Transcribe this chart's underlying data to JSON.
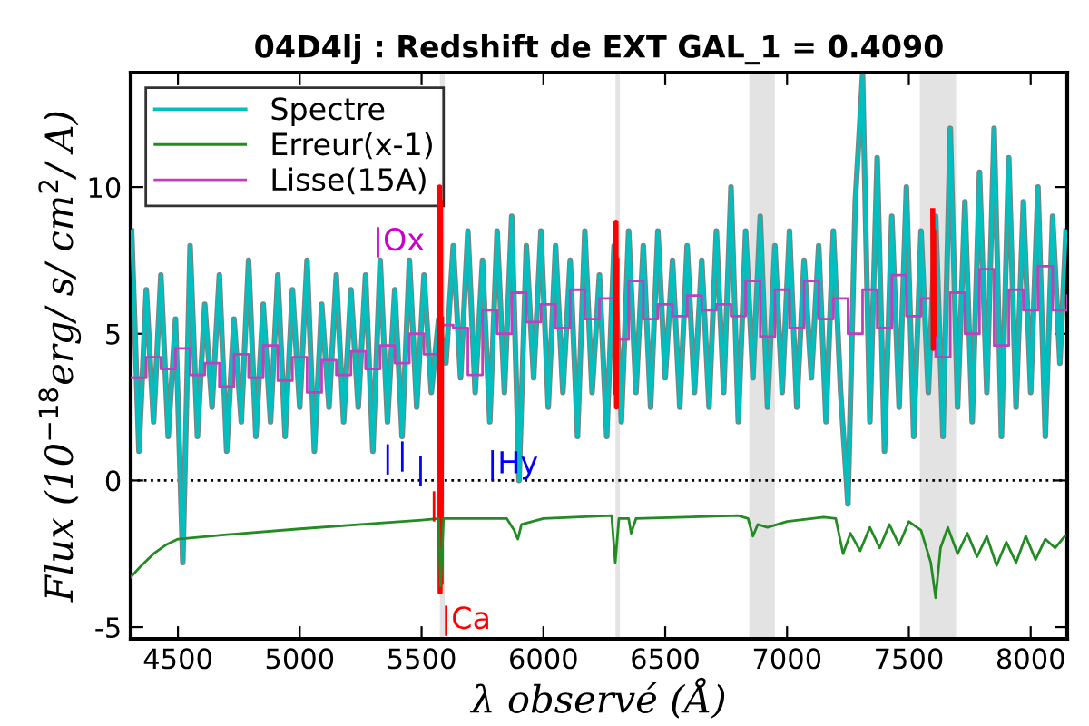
{
  "chart_data": {
    "type": "line",
    "title": "04D4lj : Redshift de EXT GAL_1 = 0.4090",
    "xlabel": "λ observé (Å)",
    "ylabel": "Flux (10$^{−18}$erg/ s/ cm$^{2}$/ A)",
    "xlim": [
      4306,
      8150
    ],
    "ylim": [
      -5.4,
      13.9
    ],
    "xticks": [
      4500,
      5000,
      5500,
      6000,
      6500,
      7000,
      7500,
      8000
    ],
    "yticks": [
      -5,
      0,
      5,
      10
    ],
    "grid": false,
    "legend": "top left",
    "series": [
      {
        "color": "#808080",
        "x": [
          4310,
          4340,
          4370,
          4400,
          4430,
          4460,
          4490,
          4520,
          4550,
          4580,
          4610,
          4640,
          4670,
          4700,
          4730,
          4760,
          4790,
          4820,
          4850,
          4880,
          4910,
          4940,
          4970,
          5000,
          5030,
          5060,
          5090,
          5120,
          5150,
          5180,
          5210,
          5240,
          5270,
          5300,
          5330,
          5360,
          5390,
          5420,
          5450,
          5480,
          5510,
          5540,
          5570,
          5600,
          5630,
          5660,
          5690,
          5720,
          5750,
          5780,
          5810,
          5840,
          5870,
          5900,
          5930,
          5960,
          5990,
          6020,
          6050,
          6080,
          6110,
          6140,
          6170,
          6200,
          6230,
          6260,
          6290,
          6320,
          6350,
          6380,
          6410,
          6440,
          6470,
          6500,
          6530,
          6560,
          6590,
          6620,
          6650,
          6680,
          6710,
          6740,
          6770,
          6800,
          6830,
          6860,
          6890,
          6920,
          6950,
          6980,
          7010,
          7040,
          7070,
          7100,
          7130,
          7160,
          7190,
          7220,
          7250,
          7280,
          7310,
          7340,
          7370,
          7400,
          7430,
          7460,
          7490,
          7520,
          7550,
          7580,
          7610,
          7640,
          7670,
          7700,
          7730,
          7760,
          7790,
          7820,
          7850,
          7880,
          7910,
          7940,
          7970,
          8000,
          8030,
          8060,
          8090,
          8120,
          8145
        ],
        "values": [
          8.5,
          1.0,
          6.5,
          2.0,
          7.0,
          1.5,
          5.5,
          -2.8,
          8.0,
          1.5,
          6.0,
          2.5,
          7.0,
          1.0,
          5.5,
          2.0,
          7.5,
          1.5,
          6.0,
          2.0,
          7.0,
          1.5,
          6.5,
          2.5,
          7.5,
          1.0,
          6.0,
          2.5,
          7.0,
          2.0,
          6.5,
          2.5,
          7.0,
          1.0,
          7.5,
          2.0,
          6.5,
          1.5,
          7.5,
          2.5,
          7.0,
          3.0,
          5.5,
          4.0,
          8.0,
          3.5,
          8.5,
          3.0,
          7.5,
          2.0,
          8.5,
          3.0,
          9.0,
          0.0,
          8.0,
          3.5,
          8.5,
          2.5,
          8.0,
          3.0,
          7.5,
          1.5,
          8.5,
          3.0,
          7.0,
          1.5,
          8.0,
          2.0,
          8.5,
          3.0,
          8.0,
          2.5,
          8.5,
          3.5,
          7.5,
          2.5,
          8.0,
          3.0,
          7.5,
          2.5,
          8.5,
          3.0,
          10.0,
          2.0,
          8.5,
          3.5,
          9.0,
          2.5,
          8.0,
          3.0,
          8.5,
          2.5,
          7.5,
          3.5,
          8.0,
          2.0,
          8.5,
          3.0,
          -0.8,
          9.5,
          13.8,
          2.0,
          11.0,
          1.0,
          9.0,
          2.5,
          10.0,
          1.5,
          8.5,
          3.0,
          9.0,
          1.5,
          12.0,
          2.5,
          9.5,
          2.0,
          10.5,
          3.0,
          12.0,
          1.5,
          11.0,
          2.5,
          9.5,
          3.0,
          10.0,
          1.5,
          9.0,
          4.0,
          8.5
        ]
      },
      {
        "name": "Spectre",
        "color": "#00bfbf",
        "x": [
          4310,
          4340,
          4370,
          4400,
          4430,
          4460,
          4490,
          4520,
          4550,
          4580,
          4610,
          4640,
          4670,
          4700,
          4730,
          4760,
          4790,
          4820,
          4850,
          4880,
          4910,
          4940,
          4970,
          5000,
          5030,
          5060,
          5090,
          5120,
          5150,
          5180,
          5210,
          5240,
          5270,
          5300,
          5330,
          5360,
          5390,
          5420,
          5450,
          5480,
          5510,
          5540,
          5570,
          5600,
          5630,
          5660,
          5690,
          5720,
          5750,
          5780,
          5810,
          5840,
          5870,
          5900,
          5930,
          5960,
          5990,
          6020,
          6050,
          6080,
          6110,
          6140,
          6170,
          6200,
          6230,
          6260,
          6290,
          6320,
          6350,
          6380,
          6410,
          6440,
          6470,
          6500,
          6530,
          6560,
          6590,
          6620,
          6650,
          6680,
          6710,
          6740,
          6770,
          6800,
          6830,
          6860,
          6890,
          6920,
          6950,
          6980,
          7010,
          7040,
          7070,
          7100,
          7130,
          7160,
          7190,
          7220,
          7250,
          7280,
          7310,
          7340,
          7370,
          7400,
          7430,
          7460,
          7490,
          7520,
          7550,
          7580,
          7610,
          7640,
          7670,
          7700,
          7730,
          7760,
          7790,
          7820,
          7850,
          7880,
          7910,
          7940,
          7970,
          8000,
          8030,
          8060,
          8090,
          8120,
          8145
        ],
        "values": [
          8.5,
          1.0,
          6.5,
          2.0,
          7.0,
          1.5,
          5.5,
          -2.8,
          8.0,
          1.5,
          6.0,
          2.5,
          7.0,
          1.0,
          5.5,
          2.0,
          7.5,
          1.5,
          6.0,
          2.0,
          7.0,
          1.5,
          6.5,
          2.5,
          7.5,
          1.0,
          6.0,
          2.5,
          7.0,
          2.0,
          6.5,
          2.5,
          7.0,
          1.0,
          7.5,
          2.0,
          6.5,
          1.5,
          7.5,
          2.5,
          7.0,
          3.0,
          5.5,
          4.0,
          8.0,
          3.5,
          8.5,
          3.0,
          7.5,
          2.0,
          8.5,
          3.0,
          9.0,
          0.0,
          8.0,
          3.5,
          8.5,
          2.5,
          8.0,
          3.0,
          7.5,
          1.5,
          8.5,
          3.0,
          7.0,
          1.5,
          8.0,
          2.0,
          8.5,
          3.0,
          8.0,
          2.5,
          8.5,
          3.5,
          7.5,
          2.5,
          8.0,
          3.0,
          7.5,
          2.5,
          8.5,
          3.0,
          10.0,
          2.0,
          8.5,
          3.5,
          9.0,
          2.5,
          8.0,
          3.0,
          8.5,
          2.5,
          7.5,
          3.5,
          8.0,
          2.0,
          8.5,
          3.0,
          -0.8,
          9.5,
          13.8,
          2.0,
          11.0,
          1.0,
          9.0,
          2.5,
          10.0,
          1.5,
          8.5,
          3.0,
          9.0,
          1.5,
          12.0,
          2.5,
          9.5,
          2.0,
          10.5,
          3.0,
          12.0,
          1.5,
          11.0,
          2.5,
          9.5,
          3.0,
          10.0,
          1.5,
          9.0,
          4.0,
          8.5
        ]
      },
      {
        "name": "Erreur(x-1)",
        "color": "#228b22",
        "x": [
          4306,
          4350,
          4400,
          4450,
          4500,
          4700,
          5000,
          5250,
          5500,
          5570,
          5578,
          5590,
          5850,
          5880,
          5895,
          5910,
          6000,
          6280,
          6295,
          6310,
          6350,
          6360,
          6380,
          6800,
          6840,
          6860,
          6880,
          6920,
          7000,
          7150,
          7200,
          7230,
          7260,
          7300,
          7340,
          7380,
          7420,
          7460,
          7500,
          7550,
          7590,
          7610,
          7630,
          7660,
          7700,
          7740,
          7780,
          7820,
          7860,
          7900,
          7940,
          7980,
          8020,
          8060,
          8100,
          8140
        ],
        "values": [
          -3.3,
          -2.9,
          -2.5,
          -2.2,
          -2.0,
          -1.85,
          -1.65,
          -1.5,
          -1.35,
          -1.3,
          -3.6,
          -1.3,
          -1.3,
          -1.7,
          -2.0,
          -1.5,
          -1.3,
          -1.2,
          -2.8,
          -1.3,
          -1.3,
          -1.8,
          -1.3,
          -1.2,
          -1.3,
          -1.9,
          -1.5,
          -1.6,
          -1.4,
          -1.25,
          -1.3,
          -2.5,
          -1.8,
          -2.4,
          -1.6,
          -2.3,
          -1.5,
          -2.2,
          -1.4,
          -1.7,
          -2.8,
          -4.0,
          -2.3,
          -1.6,
          -2.5,
          -1.8,
          -2.6,
          -1.9,
          -2.9,
          -2.1,
          -2.8,
          -1.9,
          -2.7,
          -2.0,
          -2.3,
          -1.9
        ]
      },
      {
        "name": "Lisse(15A)",
        "color": "#bf3fbf",
        "type": "step",
        "x": [
          4310,
          4370,
          4430,
          4490,
          4550,
          4610,
          4670,
          4730,
          4790,
          4850,
          4910,
          4970,
          5030,
          5090,
          5150,
          5210,
          5270,
          5330,
          5390,
          5450,
          5510,
          5570,
          5630,
          5690,
          5750,
          5810,
          5870,
          5930,
          5990,
          6050,
          6110,
          6170,
          6230,
          6290,
          6350,
          6410,
          6470,
          6530,
          6590,
          6650,
          6710,
          6770,
          6830,
          6890,
          6950,
          7010,
          7070,
          7130,
          7190,
          7250,
          7310,
          7370,
          7430,
          7490,
          7550,
          7610,
          7670,
          7730,
          7790,
          7850,
          7910,
          7970,
          8030,
          8090,
          8150
        ],
        "values": [
          3.5,
          4.2,
          3.8,
          4.5,
          3.6,
          4.0,
          3.2,
          4.3,
          3.5,
          4.6,
          3.4,
          4.2,
          3.0,
          4.1,
          3.6,
          4.4,
          3.8,
          4.6,
          4.0,
          5.0,
          4.3,
          5.3,
          5.2,
          3.6,
          5.8,
          5.0,
          6.4,
          5.4,
          6.0,
          5.2,
          6.5,
          5.5,
          6.2,
          4.8,
          6.8,
          5.5,
          6.0,
          5.6,
          6.3,
          5.8,
          6.0,
          5.6,
          6.8,
          4.9,
          6.5,
          5.2,
          6.8,
          5.5,
          6.2,
          5.0,
          6.5,
          5.2,
          7.0,
          5.6,
          6.2,
          4.2,
          6.4,
          5.0,
          7.2,
          4.6,
          6.5,
          5.8,
          7.3,
          5.8,
          6.3
        ]
      },
      {
        "color": "#ff0000",
        "x": [
          5572,
          5574,
          5576,
          5578,
          5580,
          5582,
          5584,
          6296,
          6298,
          6300,
          6302,
          6304,
          7598,
          7600,
          7602,
          7604
        ],
        "values": [
          4.0,
          10.0,
          -3.8,
          9.5,
          -3.5,
          5.5,
          null,
          3.0,
          8.8,
          2.5,
          7.5,
          null,
          9.2,
          4.5,
          8.5,
          5.0
        ]
      }
    ],
    "ref_lines": [
      {
        "axis": "y",
        "value": 0,
        "color": "#000000",
        "line_style": "dotted"
      }
    ],
    "bands": [
      {
        "axis": "x",
        "from": 5575,
        "to": 5595,
        "color": "#e3e3e3"
      },
      {
        "axis": "x",
        "from": 6296,
        "to": 6314,
        "color": "#e3e3e3"
      },
      {
        "axis": "x",
        "from": 6845,
        "to": 6950,
        "color": "#e3e3e3"
      },
      {
        "axis": "x",
        "from": 7545,
        "to": 7694,
        "color": "#e3e3e3"
      }
    ],
    "annotations": [
      {
        "text": "|Ox",
        "x": 5300,
        "y": 7.6
      },
      {
        "text": "|",
        "x": 5340,
        "y": 0.2
      },
      {
        "text": "|",
        "x": 5400,
        "y": 0.3
      },
      {
        "text": "|",
        "x": 5475,
        "y": -0.2
      },
      {
        "text": "|",
        "x": 5530,
        "y": -1.4
      },
      {
        "text": "|Hy",
        "x": 5770,
        "y": 0.0
      },
      {
        "text": "|Ca",
        "x": 5580,
        "y": -5.3
      }
    ]
  }
}
